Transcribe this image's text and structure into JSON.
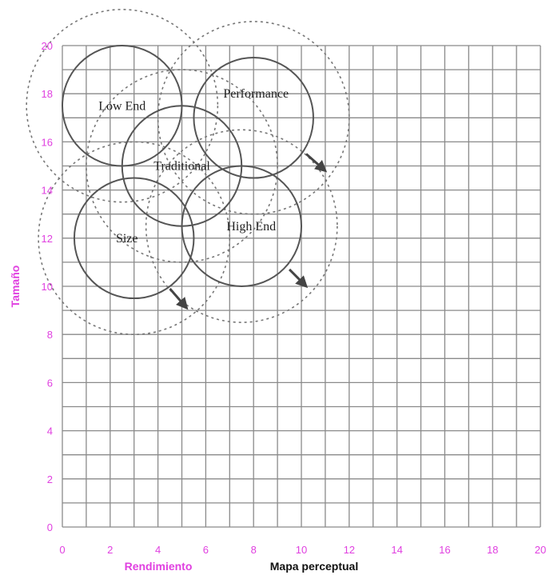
{
  "chart_data": {
    "type": "scatter",
    "chart_title": "Mapa perceptual",
    "xlabel": "Rendimiento",
    "ylabel": "Tamaño",
    "xlim": [
      0,
      20
    ],
    "ylim": [
      0,
      20
    ],
    "x_ticks": [
      "0",
      "2",
      "4",
      "6",
      "8",
      "10",
      "12",
      "14",
      "16",
      "18",
      "20"
    ],
    "y_ticks": [
      "0",
      "2",
      "4",
      "6",
      "8",
      "10",
      "12",
      "14",
      "16",
      "18",
      "20"
    ],
    "grid": true,
    "grid_step": 1,
    "segments": [
      {
        "label": "Low End",
        "center": [
          2.5,
          17.5
        ],
        "fine_radius": 2.5,
        "rough_radius": 4.0
      },
      {
        "label": "Performance",
        "center": [
          8.0,
          17.0
        ],
        "fine_radius": 2.5,
        "rough_radius": 4.0
      },
      {
        "label": "Traditional",
        "center": [
          5.0,
          15.0
        ],
        "fine_radius": 2.5,
        "rough_radius": 4.0
      },
      {
        "label": "Size",
        "center": [
          3.0,
          12.0
        ],
        "fine_radius": 2.5,
        "rough_radius": 4.0
      },
      {
        "label": "High End",
        "center": [
          7.5,
          12.5
        ],
        "fine_radius": 2.5,
        "rough_radius": 4.0
      }
    ],
    "drift_arrows": [
      {
        "from": [
          10.2,
          15.5
        ],
        "to": [
          11.0,
          14.8
        ]
      },
      {
        "from": [
          9.5,
          10.7
        ],
        "to": [
          10.2,
          10.0
        ]
      },
      {
        "from": [
          4.5,
          9.9
        ],
        "to": [
          5.2,
          9.1
        ]
      }
    ]
  },
  "colors": {
    "tick": "#e040e0",
    "axis_title": "#e040e0",
    "chart_title": "#111111",
    "grid": "#8a8a8a",
    "fine_circle": "#555555",
    "rough_circle": "#777777",
    "arrow": "#444444"
  }
}
